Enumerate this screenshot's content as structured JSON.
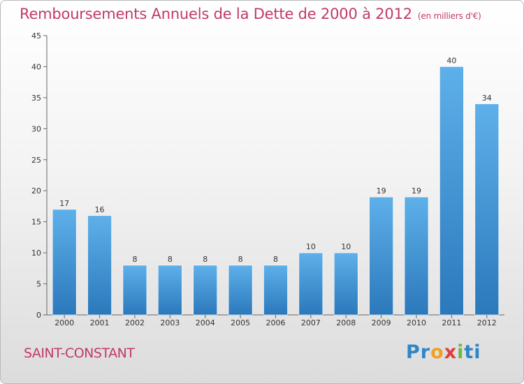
{
  "header": {
    "title": "Remboursements Annuels de la Dette de 2000 à 2012",
    "subtitle": "(en milliers d'€)"
  },
  "footer": {
    "town": "SAINT-CONSTANT",
    "brand": "Proxiti",
    "brand_letters": [
      "P",
      "r",
      "o",
      "x",
      "i",
      "ti"
    ]
  },
  "chart_data": {
    "type": "bar",
    "title": "Remboursements Annuels de la Dette de 2000 à 2012",
    "subtitle": "(en milliers d'€)",
    "categories": [
      "2000",
      "2001",
      "2002",
      "2003",
      "2004",
      "2005",
      "2006",
      "2007",
      "2008",
      "2009",
      "2010",
      "2011",
      "2012"
    ],
    "values": [
      17,
      16,
      8,
      8,
      8,
      8,
      8,
      10,
      10,
      19,
      19,
      40,
      34
    ],
    "ylim": [
      0,
      45
    ],
    "yticks": [
      0,
      5,
      10,
      15,
      20,
      25,
      30,
      35,
      40,
      45
    ],
    "grid": false,
    "bar_color": "#4fa3e0",
    "bar_color_dark": "#2f7fc0",
    "title_color": "#c23a66"
  }
}
